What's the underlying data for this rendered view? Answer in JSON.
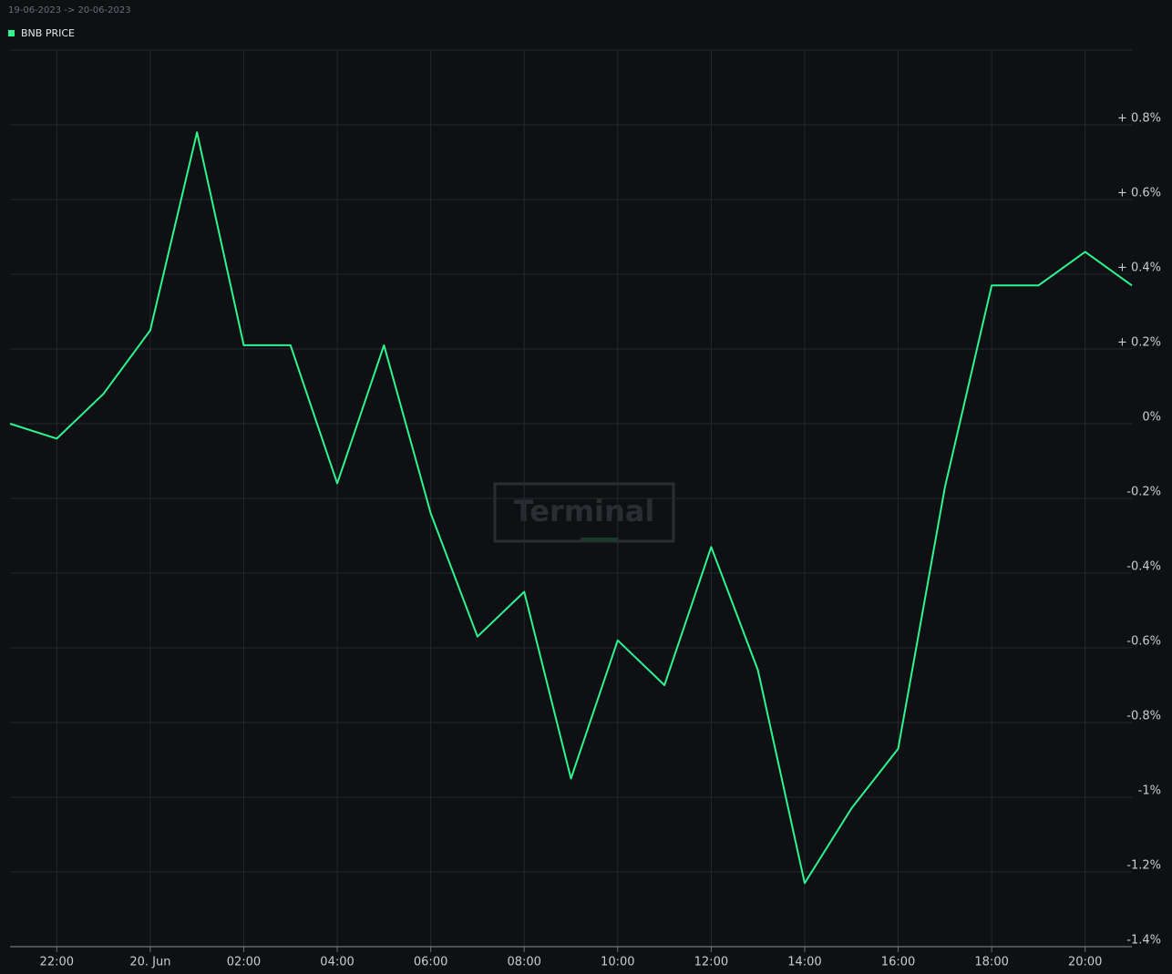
{
  "chart_data": {
    "type": "line",
    "subtitle": "19-06-2023 -> 20-06-2023",
    "watermark": "Terminal",
    "x": [
      "2023-06-19T21:00",
      "2023-06-19T22:00",
      "2023-06-19T23:00",
      "2023-06-20T00:00",
      "2023-06-20T01:00",
      "2023-06-20T02:00",
      "2023-06-20T03:00",
      "2023-06-20T04:00",
      "2023-06-20T05:00",
      "2023-06-20T06:00",
      "2023-06-20T07:00",
      "2023-06-20T08:00",
      "2023-06-20T09:00",
      "2023-06-20T10:00",
      "2023-06-20T11:00",
      "2023-06-20T12:00",
      "2023-06-20T13:00",
      "2023-06-20T14:00",
      "2023-06-20T15:00",
      "2023-06-20T16:00",
      "2023-06-20T17:00",
      "2023-06-20T18:00",
      "2023-06-20T19:00",
      "2023-06-20T20:00",
      "2023-06-20T21:00"
    ],
    "series": [
      {
        "name": "BNB PRICE",
        "color": "#2ef58f",
        "values": [
          0,
          -0.04,
          0.08,
          0.25,
          0.78,
          0.21,
          0.21,
          -0.16,
          0.21,
          -0.24,
          -0.57,
          -0.45,
          -0.95,
          -0.58,
          -0.7,
          -0.33,
          -0.66,
          -1.23,
          -1.03,
          -0.87,
          -0.17,
          0.37,
          0.37,
          0.46,
          0.37
        ]
      }
    ],
    "xlim": [
      "2023-06-19T21:00",
      "2023-06-20T21:00"
    ],
    "xticks": [
      {
        "value": "2023-06-19T22:00",
        "label": "22:00"
      },
      {
        "value": "2023-06-20T00:00",
        "label": "20. Jun"
      },
      {
        "value": "2023-06-20T02:00",
        "label": "02:00"
      },
      {
        "value": "2023-06-20T04:00",
        "label": "04:00"
      },
      {
        "value": "2023-06-20T06:00",
        "label": "06:00"
      },
      {
        "value": "2023-06-20T08:00",
        "label": "08:00"
      },
      {
        "value": "2023-06-20T10:00",
        "label": "10:00"
      },
      {
        "value": "2023-06-20T12:00",
        "label": "12:00"
      },
      {
        "value": "2023-06-20T14:00",
        "label": "14:00"
      },
      {
        "value": "2023-06-20T16:00",
        "label": "16:00"
      },
      {
        "value": "2023-06-20T18:00",
        "label": "18:00"
      },
      {
        "value": "2023-06-20T20:00",
        "label": "20:00"
      }
    ],
    "ylim": [
      -1.4,
      1.0
    ],
    "yticks": [
      {
        "value": 0.8,
        "label": "+ 0.8%"
      },
      {
        "value": 0.6,
        "label": "+ 0.6%"
      },
      {
        "value": 0.4,
        "label": "+ 0.4%"
      },
      {
        "value": 0.2,
        "label": "+ 0.2%"
      },
      {
        "value": 0,
        "label": "0%"
      },
      {
        "value": -0.2,
        "label": "-0.2%"
      },
      {
        "value": -0.4,
        "label": "-0.4%"
      },
      {
        "value": -0.6,
        "label": "-0.6%"
      },
      {
        "value": -0.8,
        "label": "-0.8%"
      },
      {
        "value": -1,
        "label": "-1%"
      },
      {
        "value": -1.2,
        "label": "-1.2%"
      },
      {
        "value": -1.4,
        "label": "-1.4%"
      }
    ],
    "grid": true
  }
}
